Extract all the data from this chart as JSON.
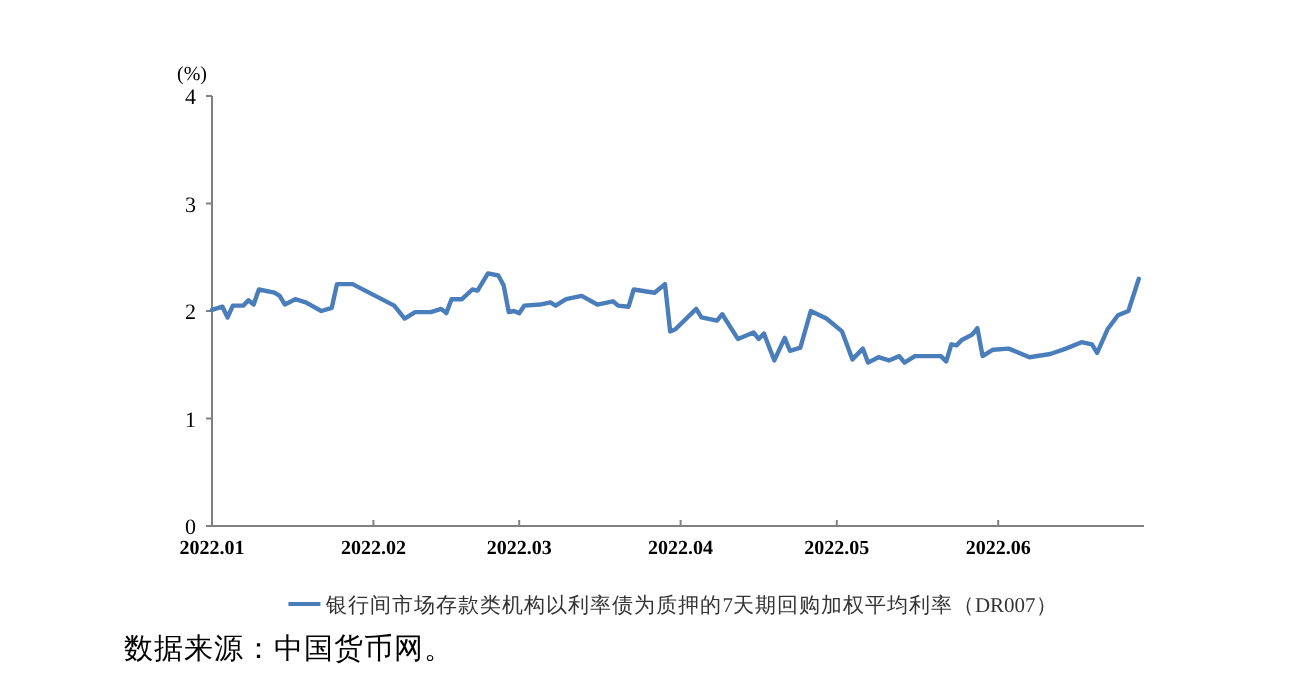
{
  "chart_data": {
    "type": "line",
    "ylabel": "(%)",
    "x": [
      "2022-01-01",
      "2022-01-03",
      "2022-01-04",
      "2022-01-05",
      "2022-01-07",
      "2022-01-08",
      "2022-01-09",
      "2022-01-10",
      "2022-01-13",
      "2022-01-14",
      "2022-01-15",
      "2022-01-17",
      "2022-01-19",
      "2022-01-22",
      "2022-01-24",
      "2022-01-25",
      "2022-01-28",
      "2022-02-05",
      "2022-02-07",
      "2022-02-09",
      "2022-02-12",
      "2022-02-14",
      "2022-02-15",
      "2022-02-16",
      "2022-02-18",
      "2022-02-20",
      "2022-02-21",
      "2022-02-23",
      "2022-02-25",
      "2022-02-26",
      "2022-02-27",
      "2022-02-28",
      "2022-03-01",
      "2022-03-02",
      "2022-03-05",
      "2022-03-07",
      "2022-03-08",
      "2022-03-10",
      "2022-03-13",
      "2022-03-16",
      "2022-03-19",
      "2022-03-20",
      "2022-03-22",
      "2022-03-23",
      "2022-03-27",
      "2022-03-29",
      "2022-03-30",
      "2022-03-31",
      "2022-04-04",
      "2022-04-05",
      "2022-04-08",
      "2022-04-09",
      "2022-04-12",
      "2022-04-15",
      "2022-04-16",
      "2022-04-17",
      "2022-04-19",
      "2022-04-21",
      "2022-04-22",
      "2022-04-24",
      "2022-04-26",
      "2022-04-29",
      "2022-05-02",
      "2022-05-04",
      "2022-05-06",
      "2022-05-07",
      "2022-05-09",
      "2022-05-11",
      "2022-05-13",
      "2022-05-14",
      "2022-05-16",
      "2022-05-21",
      "2022-05-22",
      "2022-05-23",
      "2022-05-24",
      "2022-05-25",
      "2022-05-27",
      "2022-05-28",
      "2022-05-29",
      "2022-05-31",
      "2022-06-03",
      "2022-06-07",
      "2022-06-11",
      "2022-06-14",
      "2022-06-17",
      "2022-06-19",
      "2022-06-20",
      "2022-06-22",
      "2022-06-24",
      "2022-06-26",
      "2022-06-28"
    ],
    "series": [
      {
        "name": "银行间市场存款类机构以利率债为质押的7天期回购加权平均利率（DR007）",
        "color": "#4a7ebb",
        "values": [
          2.01,
          2.04,
          1.94,
          2.05,
          2.05,
          2.1,
          2.06,
          2.2,
          2.17,
          2.14,
          2.06,
          2.11,
          2.08,
          2.0,
          2.03,
          2.25,
          2.25,
          2.05,
          1.93,
          1.99,
          1.99,
          2.02,
          1.98,
          2.11,
          2.11,
          2.2,
          2.19,
          2.35,
          2.33,
          2.24,
          1.99,
          2.0,
          1.98,
          2.05,
          2.06,
          2.08,
          2.05,
          2.11,
          2.14,
          2.06,
          2.09,
          2.05,
          2.04,
          2.2,
          2.17,
          2.25,
          1.81,
          1.83,
          2.02,
          1.94,
          1.91,
          1.97,
          1.74,
          1.8,
          1.74,
          1.79,
          1.54,
          1.75,
          1.63,
          1.66,
          2.0,
          1.93,
          1.81,
          1.55,
          1.65,
          1.52,
          1.57,
          1.54,
          1.58,
          1.52,
          1.58,
          1.58,
          1.53,
          1.69,
          1.68,
          1.73,
          1.78,
          1.84,
          1.58,
          1.64,
          1.65,
          1.57,
          1.6,
          1.65,
          1.71,
          1.69,
          1.61,
          1.83,
          1.96,
          2.0,
          2.3
        ]
      }
    ],
    "xlim": [
      "2022-01-01",
      "2022-06-29"
    ],
    "xticks": [
      {
        "value": "2022-01-01",
        "label": "2022.01"
      },
      {
        "value": "2022-02-01",
        "label": "2022.02"
      },
      {
        "value": "2022-03-01",
        "label": "2022.03"
      },
      {
        "value": "2022-04-01",
        "label": "2022.04"
      },
      {
        "value": "2022-05-01",
        "label": "2022.05"
      },
      {
        "value": "2022-06-01",
        "label": "2022.06"
      }
    ],
    "ylim": [
      0,
      4
    ],
    "yticks": [
      0,
      1,
      2,
      3,
      4
    ],
    "legend": "bottom",
    "grid": false,
    "marker": "none",
    "line_style": "solid",
    "annotations": [
      "数据来源：中国货币网。"
    ]
  }
}
